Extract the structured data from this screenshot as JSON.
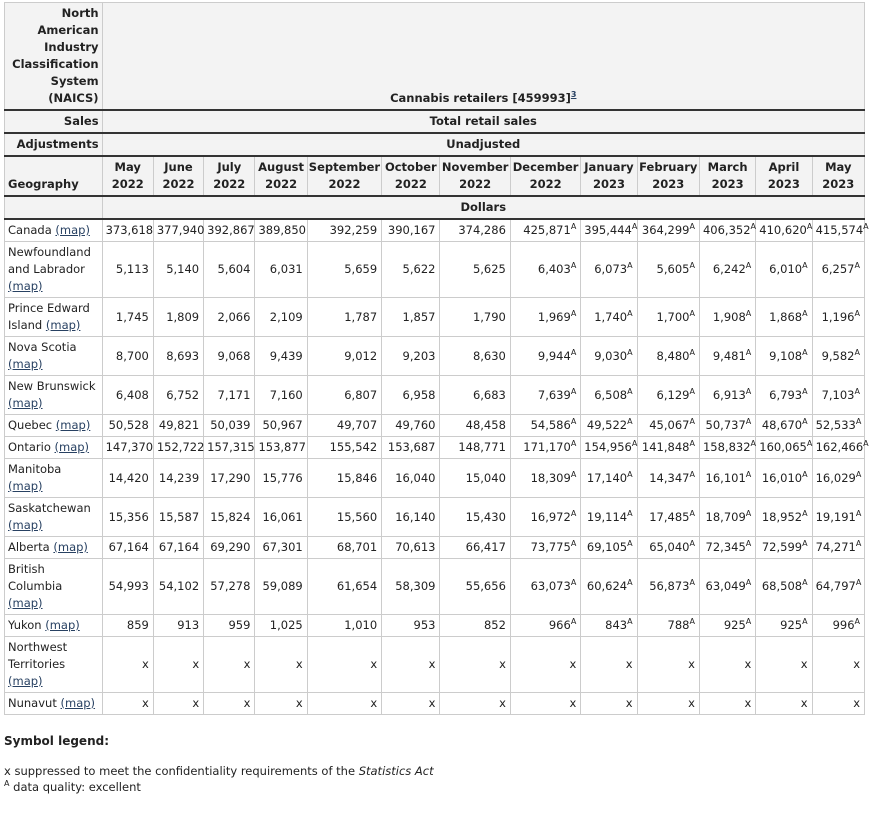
{
  "header": {
    "naics_label": "North American Industry Classification System (NAICS)",
    "naics_value": "Cannabis retailers [459993]",
    "naics_footnote": "3",
    "sales_label": "Sales",
    "sales_value": "Total retail sales",
    "adjustments_label": "Adjustments",
    "adjustments_value": "Unadjusted",
    "geography_label": "Geography",
    "units": "Dollars"
  },
  "columns": [
    {
      "month": "May",
      "year": "2022"
    },
    {
      "month": "June",
      "year": "2022"
    },
    {
      "month": "July",
      "year": "2022"
    },
    {
      "month": "August",
      "year": "2022"
    },
    {
      "month": "September",
      "year": "2022"
    },
    {
      "month": "October",
      "year": "2022"
    },
    {
      "month": "November",
      "year": "2022"
    },
    {
      "month": "December",
      "year": "2022"
    },
    {
      "month": "January",
      "year": "2023"
    },
    {
      "month": "February",
      "year": "2023"
    },
    {
      "month": "March",
      "year": "2023"
    },
    {
      "month": "April",
      "year": "2023"
    },
    {
      "month": "May",
      "year": "2023"
    }
  ],
  "rows": [
    {
      "geography": "Canada",
      "map": "(map)",
      "values": [
        "373,618",
        "377,940",
        "392,867",
        "389,850",
        "392,259",
        "390,167",
        "374,286",
        "425,871",
        "395,444",
        "364,299",
        "406,352",
        "410,620",
        "415,574"
      ],
      "flags": [
        null,
        null,
        null,
        null,
        null,
        null,
        null,
        "A",
        "A",
        "A",
        "A",
        "A",
        "A"
      ]
    },
    {
      "geography": "Newfoundland and Labrador",
      "map": "(map)",
      "values": [
        "5,113",
        "5,140",
        "5,604",
        "6,031",
        "5,659",
        "5,622",
        "5,625",
        "6,403",
        "6,073",
        "5,605",
        "6,242",
        "6,010",
        "6,257"
      ],
      "flags": [
        null,
        null,
        null,
        null,
        null,
        null,
        null,
        "A",
        "A",
        "A",
        "A",
        "A",
        "A"
      ]
    },
    {
      "geography": "Prince Edward Island",
      "map": "(map)",
      "values": [
        "1,745",
        "1,809",
        "2,066",
        "2,109",
        "1,787",
        "1,857",
        "1,790",
        "1,969",
        "1,740",
        "1,700",
        "1,908",
        "1,868",
        "1,196"
      ],
      "flags": [
        null,
        null,
        null,
        null,
        null,
        null,
        null,
        "A",
        "A",
        "A",
        "A",
        "A",
        "A"
      ]
    },
    {
      "geography": "Nova Scotia",
      "map": "(map)",
      "values": [
        "8,700",
        "8,693",
        "9,068",
        "9,439",
        "9,012",
        "9,203",
        "8,630",
        "9,944",
        "9,030",
        "8,480",
        "9,481",
        "9,108",
        "9,582"
      ],
      "flags": [
        null,
        null,
        null,
        null,
        null,
        null,
        null,
        "A",
        "A",
        "A",
        "A",
        "A",
        "A"
      ]
    },
    {
      "geography": "New Brunswick",
      "map": "(map)",
      "values": [
        "6,408",
        "6,752",
        "7,171",
        "7,160",
        "6,807",
        "6,958",
        "6,683",
        "7,639",
        "6,508",
        "6,129",
        "6,913",
        "6,793",
        "7,103"
      ],
      "flags": [
        null,
        null,
        null,
        null,
        null,
        null,
        null,
        "A",
        "A",
        "A",
        "A",
        "A",
        "A"
      ]
    },
    {
      "geography": "Quebec",
      "map": "(map)",
      "values": [
        "50,528",
        "49,821",
        "50,039",
        "50,967",
        "49,707",
        "49,760",
        "48,458",
        "54,586",
        "49,522",
        "45,067",
        "50,737",
        "48,670",
        "52,533"
      ],
      "flags": [
        null,
        null,
        null,
        null,
        null,
        null,
        null,
        "A",
        "A",
        "A",
        "A",
        "A",
        "A"
      ]
    },
    {
      "geography": "Ontario",
      "map": "(map)",
      "values": [
        "147,370",
        "152,722",
        "157,315",
        "153,877",
        "155,542",
        "153,687",
        "148,771",
        "171,170",
        "154,956",
        "141,848",
        "158,832",
        "160,065",
        "162,466"
      ],
      "flags": [
        null,
        null,
        null,
        null,
        null,
        null,
        null,
        "A",
        "A",
        "A",
        "A",
        "A",
        "A"
      ]
    },
    {
      "geography": "Manitoba",
      "map": "(map)",
      "values": [
        "14,420",
        "14,239",
        "17,290",
        "15,776",
        "15,846",
        "16,040",
        "15,040",
        "18,309",
        "17,140",
        "14,347",
        "16,101",
        "16,010",
        "16,029"
      ],
      "flags": [
        null,
        null,
        null,
        null,
        null,
        null,
        null,
        "A",
        "A",
        "A",
        "A",
        "A",
        "A"
      ]
    },
    {
      "geography": "Saskatchewan",
      "map": "(map)",
      "values": [
        "15,356",
        "15,587",
        "15,824",
        "16,061",
        "15,560",
        "16,140",
        "15,430",
        "16,972",
        "19,114",
        "17,485",
        "18,709",
        "18,952",
        "19,191"
      ],
      "flags": [
        null,
        null,
        null,
        null,
        null,
        null,
        null,
        "A",
        "A",
        "A",
        "A",
        "A",
        "A"
      ]
    },
    {
      "geography": "Alberta",
      "map": "(map)",
      "values": [
        "67,164",
        "67,164",
        "69,290",
        "67,301",
        "68,701",
        "70,613",
        "66,417",
        "73,775",
        "69,105",
        "65,040",
        "72,345",
        "72,599",
        "74,271"
      ],
      "flags": [
        null,
        null,
        null,
        null,
        null,
        null,
        null,
        "A",
        "A",
        "A",
        "A",
        "A",
        "A"
      ]
    },
    {
      "geography": "British Columbia",
      "map": "(map)",
      "values": [
        "54,993",
        "54,102",
        "57,278",
        "59,089",
        "61,654",
        "58,309",
        "55,656",
        "63,073",
        "60,624",
        "56,873",
        "63,049",
        "68,508",
        "64,797"
      ],
      "flags": [
        null,
        null,
        null,
        null,
        null,
        null,
        null,
        "A",
        "A",
        "A",
        "A",
        "A",
        "A"
      ]
    },
    {
      "geography": "Yukon",
      "map": "(map)",
      "values": [
        "859",
        "913",
        "959",
        "1,025",
        "1,010",
        "953",
        "852",
        "966",
        "843",
        "788",
        "925",
        "925",
        "996"
      ],
      "flags": [
        null,
        null,
        null,
        null,
        null,
        null,
        null,
        "A",
        "A",
        "A",
        "A",
        "A",
        "A"
      ]
    },
    {
      "geography": "Northwest Territories",
      "map": "(map)",
      "values": [
        "x",
        "x",
        "x",
        "x",
        "x",
        "x",
        "x",
        "x",
        "x",
        "x",
        "x",
        "x",
        "x"
      ],
      "flags": [
        null,
        null,
        null,
        null,
        null,
        null,
        null,
        null,
        null,
        null,
        null,
        null,
        null
      ]
    },
    {
      "geography": "Nunavut",
      "map": "(map)",
      "values": [
        "x",
        "x",
        "x",
        "x",
        "x",
        "x",
        "x",
        "x",
        "x",
        "x",
        "x",
        "x",
        "x"
      ],
      "flags": [
        null,
        null,
        null,
        null,
        null,
        null,
        null,
        null,
        null,
        null,
        null,
        null,
        null
      ]
    }
  ],
  "legend": {
    "title": "Symbol legend:",
    "items": [
      {
        "symbol": "x",
        "text": "suppressed to meet the confidentiality requirements of the",
        "emphasis": "Statistics Act"
      },
      {
        "symbol": "A",
        "text": "data quality: excellent"
      }
    ]
  }
}
